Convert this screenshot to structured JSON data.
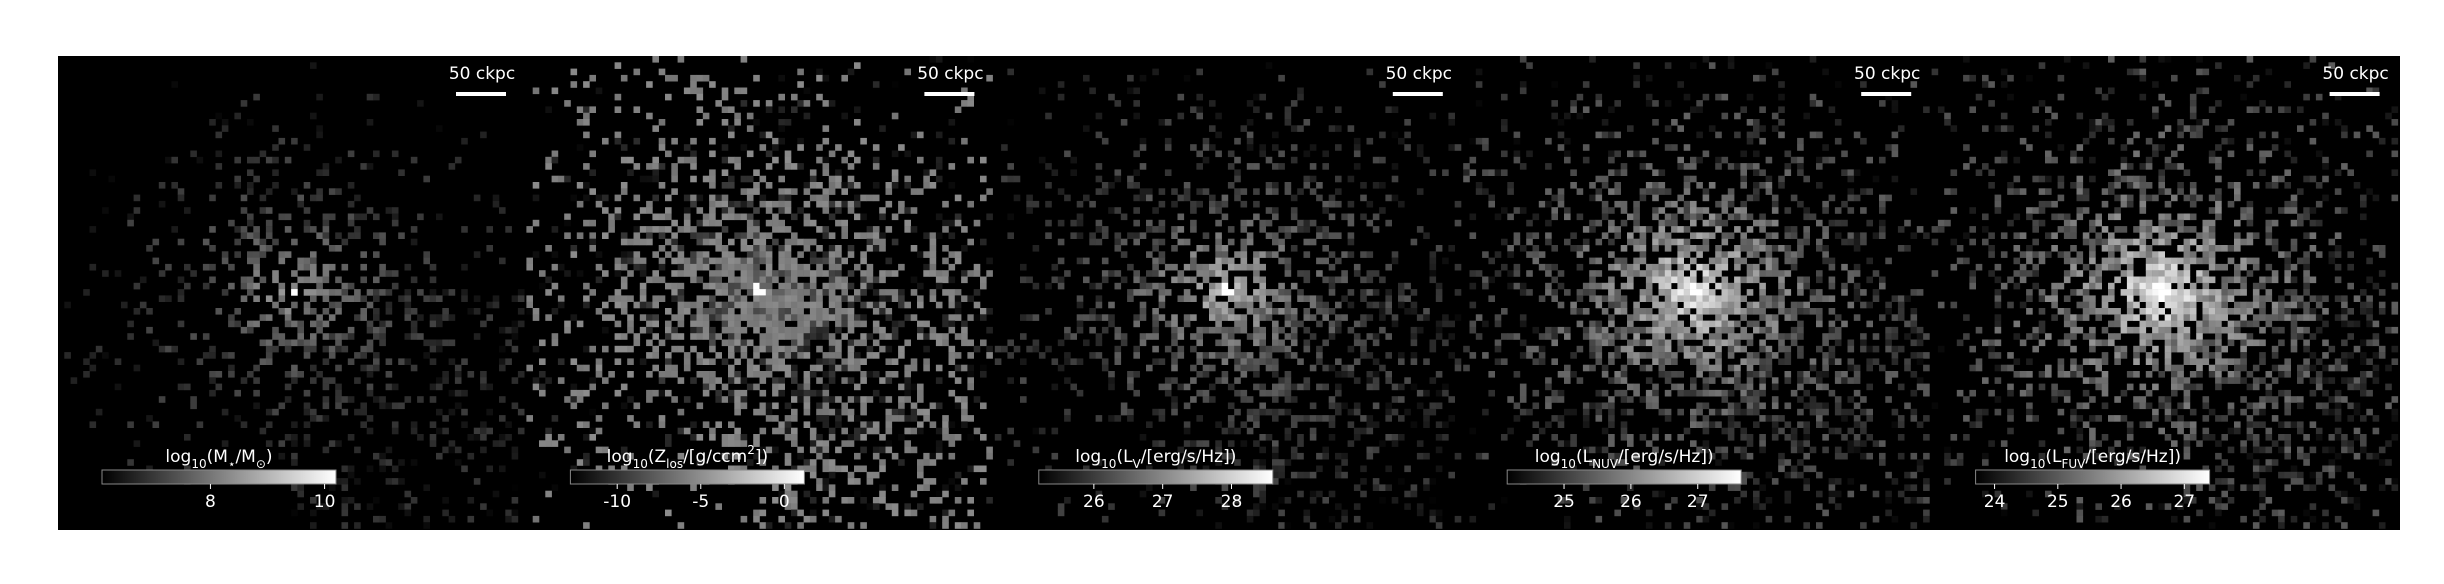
{
  "chart_data": [
    {
      "type": "image",
      "scalebar": "50 ckpc",
      "colorbar_label": [
        {
          "text": "log"
        },
        {
          "text": "10",
          "sub": true
        },
        {
          "text": "(M"
        },
        {
          "text": "⋆",
          "sub": true
        },
        {
          "text": "/M"
        },
        {
          "text": "⊙",
          "sub": true
        },
        {
          "text": ")"
        }
      ],
      "clim": [
        6.1,
        10.2
      ],
      "cticks": [
        8,
        10
      ]
    },
    {
      "type": "image",
      "scalebar": "50 ckpc",
      "colorbar_label": [
        {
          "text": "log"
        },
        {
          "text": "10",
          "sub": true
        },
        {
          "text": "(Z"
        },
        {
          "text": "los",
          "sub": true
        },
        {
          "text": "/[g/ccm"
        },
        {
          "text": "2",
          "sup": true
        },
        {
          "text": "])"
        }
      ],
      "clim": [
        -12.8,
        1.2
      ],
      "cticks": [
        -10,
        -5,
        0
      ]
    },
    {
      "type": "image",
      "scalebar": "50 ckpc",
      "colorbar_label": [
        {
          "text": "log"
        },
        {
          "text": "10",
          "sub": true
        },
        {
          "text": "(L"
        },
        {
          "text": "V",
          "sub": true
        },
        {
          "text": "/[erg/s/Hz])"
        }
      ],
      "clim": [
        25.2,
        28.6
      ],
      "cticks": [
        26,
        27,
        28
      ]
    },
    {
      "type": "image",
      "scalebar": "50 ckpc",
      "colorbar_label": [
        {
          "text": "log"
        },
        {
          "text": "10",
          "sub": true
        },
        {
          "text": "(L"
        },
        {
          "text": "NUV",
          "sub": true
        },
        {
          "text": "/[erg/s/Hz])"
        }
      ],
      "clim": [
        24.15,
        27.65
      ],
      "cticks": [
        25,
        26,
        27
      ]
    },
    {
      "type": "image",
      "scalebar": "50 ckpc",
      "colorbar_label": [
        {
          "text": "log"
        },
        {
          "text": "10",
          "sub": true
        },
        {
          "text": "(L"
        },
        {
          "text": "FUV",
          "sub": true
        },
        {
          "text": "/[erg/s/Hz])"
        }
      ],
      "clim": [
        23.7,
        27.4
      ],
      "cticks": [
        24,
        25,
        26,
        27
      ]
    }
  ]
}
